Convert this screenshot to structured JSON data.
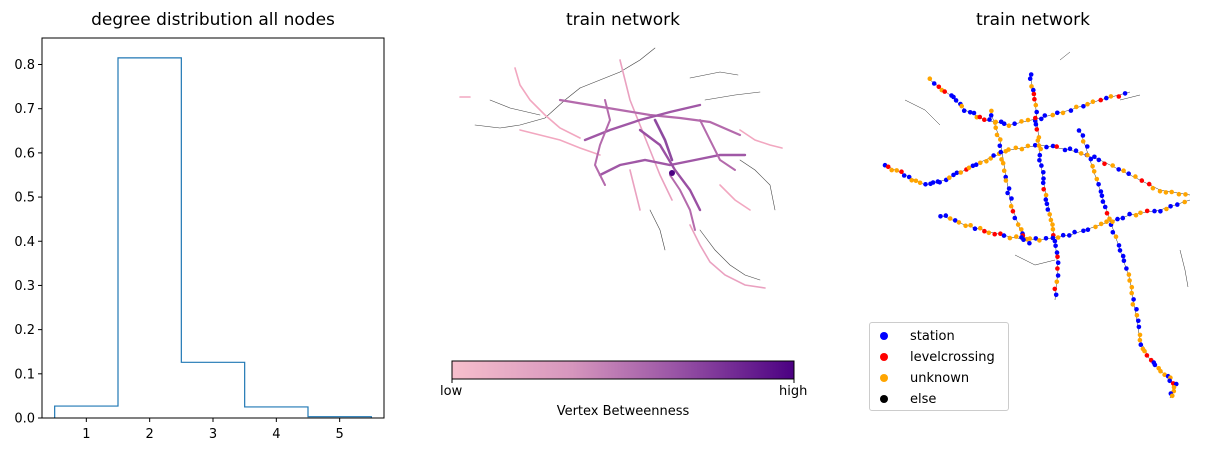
{
  "chart_data": [
    {
      "type": "step-histogram",
      "title": "degree distribution  all nodes",
      "xlabel": "",
      "ylabel": "",
      "bin_edges": [
        0.5,
        1.5,
        2.5,
        3.5,
        4.5,
        5.5
      ],
      "values": [
        0.027,
        0.815,
        0.126,
        0.025,
        0.003
      ],
      "xlim": [
        0.3,
        5.7
      ],
      "ylim": [
        0,
        0.86
      ],
      "xticks": [
        1,
        2,
        3,
        4,
        5
      ],
      "yticks": [
        0.0,
        0.1,
        0.2,
        0.3,
        0.4,
        0.5,
        0.6,
        0.7,
        0.8
      ],
      "line_color": "#1f77b4",
      "grid": false
    },
    {
      "type": "network",
      "title": "train network",
      "colorbar": {
        "label": "Vertex Betweenness",
        "low_label": "low",
        "high_label": "high",
        "colors": [
          "#f7bfcc",
          "#c986b7",
          "#8e4aa0",
          "#4b0082"
        ]
      }
    },
    {
      "type": "network",
      "title": "train network",
      "legend": [
        {
          "label": "station",
          "color": "#0000ff"
        },
        {
          "label": "levelcrossing",
          "color": "#ff0000"
        },
        {
          "label": "unknown",
          "color": "#ffa500"
        },
        {
          "label": "else",
          "color": "#000000"
        }
      ],
      "legend_position": "lower-left"
    }
  ]
}
